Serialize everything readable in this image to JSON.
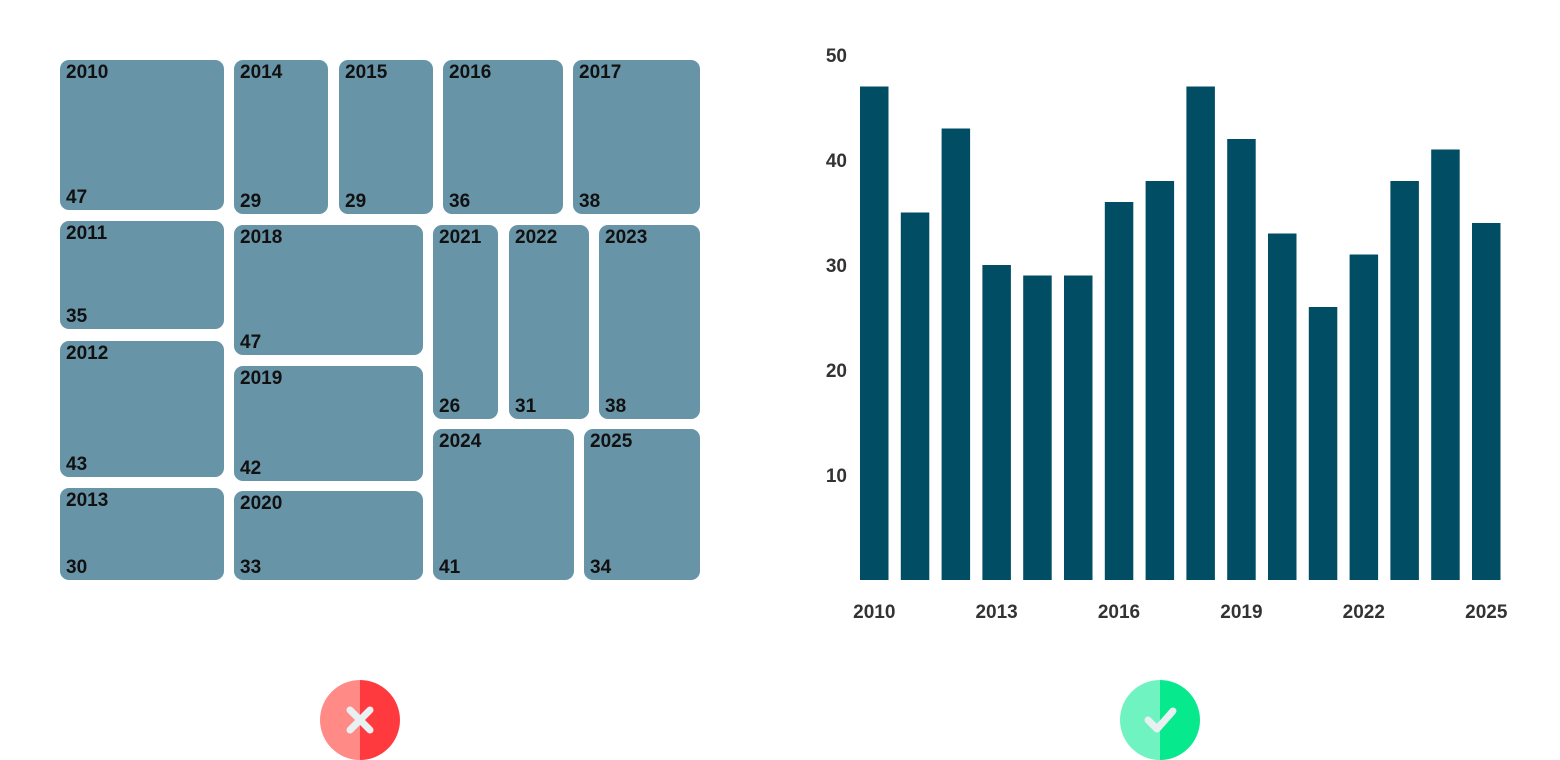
{
  "colors": {
    "tile": "#6794a7",
    "bar": "#014d64",
    "bad_left": "#ff8a86",
    "bad_right": "#ff3a3f",
    "good_left": "#6ff3c0",
    "good_right": "#06ea8d",
    "mark": "#e8f0f2"
  },
  "badges": {
    "left": {
      "icon": "cross-icon"
    },
    "right": {
      "icon": "check-icon"
    }
  },
  "chart_data": [
    {
      "type": "treemap",
      "categories": [
        "2010",
        "2011",
        "2012",
        "2013",
        "2014",
        "2015",
        "2016",
        "2017",
        "2018",
        "2019",
        "2020",
        "2021",
        "2022",
        "2023",
        "2024",
        "2025"
      ],
      "values": [
        47,
        35,
        43,
        30,
        29,
        29,
        36,
        38,
        47,
        42,
        33,
        26,
        31,
        38,
        41,
        34
      ]
    },
    {
      "type": "bar",
      "categories": [
        "2010",
        "2011",
        "2012",
        "2013",
        "2014",
        "2015",
        "2016",
        "2017",
        "2018",
        "2019",
        "2020",
        "2021",
        "2022",
        "2023",
        "2024",
        "2025"
      ],
      "values": [
        47,
        35,
        43,
        30,
        29,
        29,
        36,
        38,
        47,
        42,
        33,
        26,
        31,
        38,
        41,
        34
      ],
      "ylim": [
        0,
        50
      ],
      "yticks": [
        10,
        20,
        30,
        40,
        50
      ],
      "xticks": [
        "2010",
        "2013",
        "2016",
        "2019",
        "2022",
        "2025"
      ],
      "grid": false
    }
  ]
}
